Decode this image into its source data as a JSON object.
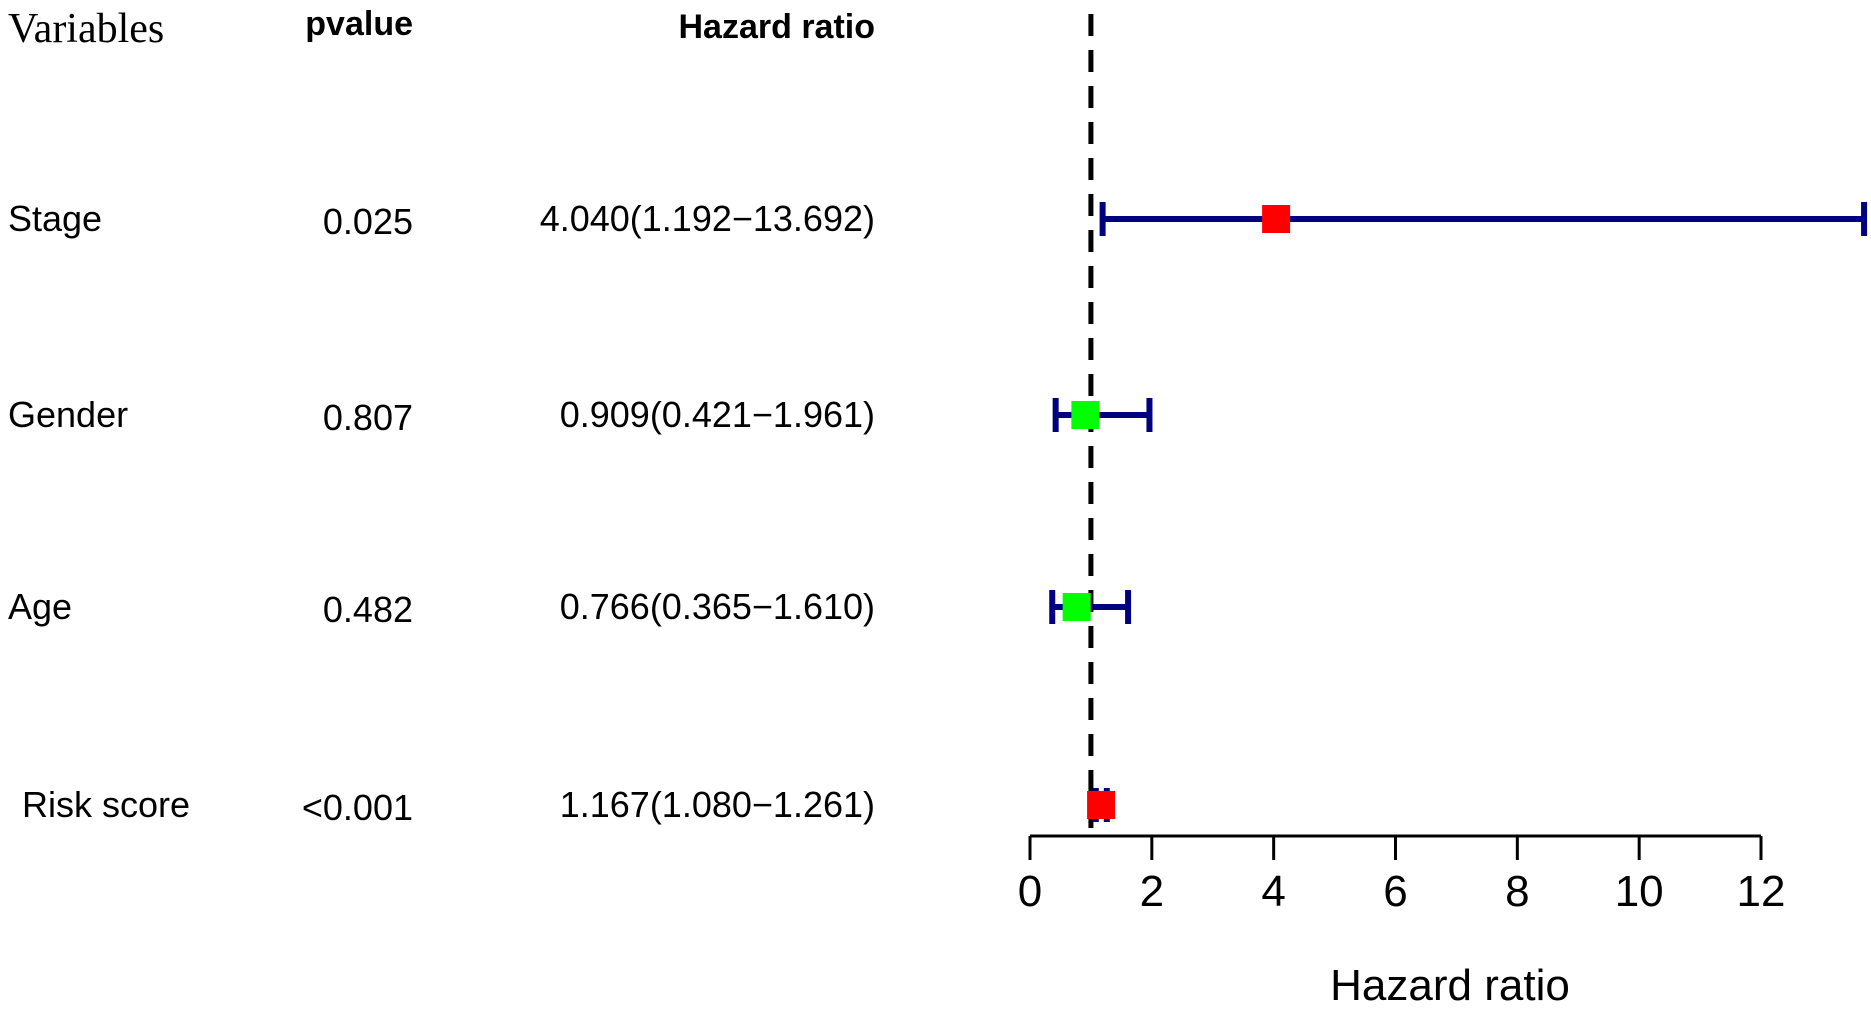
{
  "chart_data": {
    "type": "forest",
    "headers": {
      "variables": "Variables",
      "pvalue": "pvalue",
      "hazard_ratio": "Hazard ratio"
    },
    "rows": [
      {
        "variable": "Stage",
        "pvalue": "0.025",
        "hr_text": "4.040(1.192−13.692)",
        "hr": 4.04,
        "lower": 1.192,
        "upper": 13.692,
        "marker_color": "#FF0000"
      },
      {
        "variable": "Gender",
        "pvalue": "0.807",
        "hr_text": "0.909(0.421−1.961)",
        "hr": 0.909,
        "lower": 0.421,
        "upper": 1.961,
        "marker_color": "#00FF00"
      },
      {
        "variable": "Age",
        "pvalue": "0.482",
        "hr_text": "0.766(0.365−1.610)",
        "hr": 0.766,
        "lower": 0.365,
        "upper": 1.61,
        "marker_color": "#00FF00"
      },
      {
        "variable": "Risk score",
        "pvalue": "<0.001",
        "hr_text": "1.167(1.080−1.261)",
        "hr": 1.167,
        "lower": 1.08,
        "upper": 1.261,
        "marker_color": "#FF0000"
      }
    ],
    "reference_line": 1,
    "xlim": [
      0,
      12
    ],
    "xticks": [
      0,
      2,
      4,
      6,
      8,
      10,
      12
    ],
    "xlabel": "Hazard ratio",
    "ci_color": "#000080"
  }
}
